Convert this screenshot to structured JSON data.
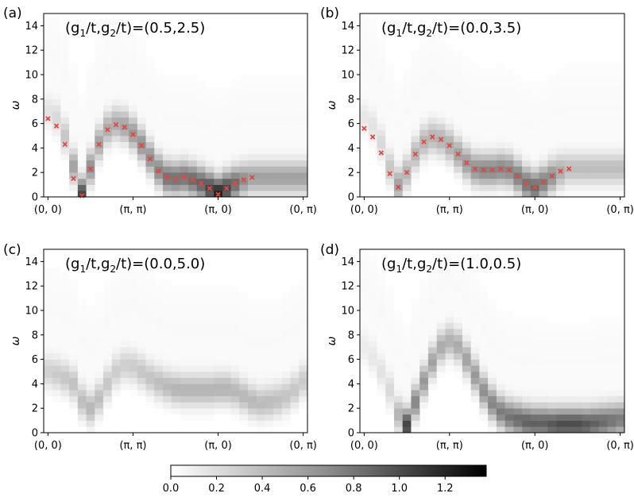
{
  "figure": {
    "colormap": "gray_r",
    "colorbar": {
      "min": 0.0,
      "max": 1.38,
      "ticks": [
        "0.0",
        "0.2",
        "0.4",
        "0.6",
        "0.8",
        "1.0",
        "1.2"
      ],
      "tick_values": [
        0.0,
        0.2,
        0.4,
        0.6,
        0.8,
        1.0,
        1.2
      ]
    },
    "marker_color": "#e8453c"
  },
  "chart_data": [
    {
      "type": "heatmap",
      "panel_label": "(a)",
      "title": "(g1/t,g2/t)=(0.5,2.5)",
      "title_parts": [
        "(g",
        "1",
        "/t,g",
        "2",
        "/t)=(0.5,2.5)"
      ],
      "ylabel": "ω",
      "ylim": [
        0,
        15
      ],
      "yticks": [
        "0",
        "2",
        "4",
        "6",
        "8",
        "10",
        "12",
        "14"
      ],
      "ytick_values": [
        0,
        2,
        4,
        6,
        8,
        10,
        12,
        14
      ],
      "xticks": [
        "(0, 0)",
        "(π, π)",
        "(π, 0)",
        "(0, π)"
      ],
      "xtick_index": [
        0,
        10,
        20,
        30
      ],
      "n_columns": 31,
      "dispersion": [
        6.4,
        5.8,
        4.3,
        1.5,
        0.1,
        2.3,
        4.3,
        5.5,
        5.9,
        5.7,
        5.1,
        4.2,
        3.1,
        2.1,
        1.6,
        1.5,
        1.6,
        1.4,
        1.1,
        0.7,
        0.2,
        0.7,
        1.1,
        1.4,
        1.6
      ],
      "dispersion_columns": [
        0,
        1,
        2,
        3,
        4,
        5,
        6,
        7,
        8,
        9,
        10,
        11,
        12,
        13,
        14,
        15,
        16,
        17,
        18,
        19,
        20,
        21,
        22,
        23,
        24
      ],
      "band_center": [
        7.0,
        6.5,
        5.0,
        2.5,
        0.2,
        2.4,
        4.4,
        5.6,
        6.0,
        5.8,
        5.2,
        4.3,
        3.2,
        2.2,
        1.6,
        1.5,
        1.6,
        1.4,
        1.1,
        0.7,
        0.3,
        0.7,
        1.1,
        1.4,
        1.6,
        1.6,
        1.6,
        1.6,
        1.6,
        1.6,
        1.6
      ],
      "band_weight": [
        0.15,
        0.2,
        0.3,
        0.5,
        1.0,
        0.6,
        0.5,
        0.45,
        0.45,
        0.5,
        0.55,
        0.6,
        0.6,
        0.65,
        0.75,
        0.75,
        0.75,
        0.8,
        0.85,
        1.0,
        1.2,
        1.0,
        0.8,
        0.6,
        0.5,
        0.5,
        0.5,
        0.5,
        0.5,
        0.5,
        0.5
      ],
      "show_markers": true
    },
    {
      "type": "heatmap",
      "panel_label": "(b)",
      "title": "(g1/t,g2/t)=(0.0,3.5)",
      "title_parts": [
        "(g",
        "1",
        "/t,g",
        "2",
        "/t)=(0.0,3.5)"
      ],
      "ylabel": "ω",
      "ylim": [
        0,
        15
      ],
      "yticks": [
        "0",
        "2",
        "4",
        "6",
        "8",
        "10",
        "12",
        "14"
      ],
      "ytick_values": [
        0,
        2,
        4,
        6,
        8,
        10,
        12,
        14
      ],
      "xticks": [
        "(0, 0)",
        "(π, π)",
        "(π, 0)",
        "(0, π)"
      ],
      "xtick_index": [
        0,
        10,
        20,
        30
      ],
      "n_columns": 31,
      "dispersion": [
        5.6,
        4.9,
        3.6,
        1.9,
        0.8,
        2.0,
        3.5,
        4.5,
        4.9,
        4.7,
        4.2,
        3.5,
        2.8,
        2.3,
        2.2,
        2.2,
        2.3,
        2.2,
        1.7,
        1.1,
        0.8,
        1.2,
        1.7,
        2.1,
        2.3
      ],
      "dispersion_columns": [
        0,
        1,
        2,
        3,
        4,
        5,
        6,
        7,
        8,
        9,
        10,
        11,
        12,
        13,
        14,
        15,
        16,
        17,
        18,
        19,
        20,
        21,
        22,
        23,
        24
      ],
      "band_center": [
        6.5,
        5.8,
        4.4,
        2.4,
        1.0,
        2.0,
        3.5,
        4.5,
        4.9,
        4.7,
        4.2,
        3.5,
        2.8,
        2.3,
        2.2,
        2.2,
        2.3,
        2.2,
        1.7,
        1.1,
        0.8,
        1.2,
        1.7,
        2.1,
        2.3,
        2.3,
        2.3,
        2.3,
        2.3,
        2.3,
        2.3
      ],
      "band_weight": [
        0.12,
        0.15,
        0.2,
        0.3,
        0.5,
        0.4,
        0.4,
        0.4,
        0.4,
        0.42,
        0.45,
        0.5,
        0.55,
        0.6,
        0.65,
        0.65,
        0.65,
        0.65,
        0.7,
        0.75,
        0.8,
        0.7,
        0.6,
        0.45,
        0.35,
        0.35,
        0.35,
        0.35,
        0.35,
        0.35,
        0.35
      ],
      "show_markers": true
    },
    {
      "type": "heatmap",
      "panel_label": "(c)",
      "title": "(g1/t,g2/t)=(0.0,5.0)",
      "title_parts": [
        "(g",
        "1",
        "/t,g",
        "2",
        "/t)=(0.0,5.0)"
      ],
      "ylabel": "ω",
      "ylim": [
        0,
        15
      ],
      "yticks": [
        "0",
        "2",
        "4",
        "6",
        "8",
        "10",
        "12",
        "14"
      ],
      "ytick_values": [
        0,
        2,
        4,
        6,
        8,
        10,
        12,
        14
      ],
      "xticks": [
        "(0, 0)",
        "(π, π)",
        "(π, 0)",
        "(0, π)"
      ],
      "xtick_index": [
        0,
        10,
        20,
        30
      ],
      "n_columns": 31,
      "band_center": [
        5.0,
        4.8,
        4.5,
        4.0,
        2.6,
        2.0,
        2.8,
        4.0,
        5.0,
        5.5,
        5.4,
        5.0,
        4.5,
        4.1,
        3.8,
        3.6,
        3.5,
        3.5,
        3.5,
        3.5,
        3.6,
        3.6,
        3.4,
        3.0,
        2.6,
        2.4,
        2.5,
        2.7,
        3.0,
        3.5,
        4.2
      ],
      "band_weight": [
        0.25,
        0.28,
        0.3,
        0.33,
        0.35,
        0.38,
        0.35,
        0.3,
        0.27,
        0.26,
        0.27,
        0.3,
        0.32,
        0.35,
        0.37,
        0.4,
        0.4,
        0.4,
        0.4,
        0.4,
        0.4,
        0.4,
        0.38,
        0.38,
        0.38,
        0.36,
        0.36,
        0.34,
        0.32,
        0.3,
        0.28
      ],
      "show_markers": false
    },
    {
      "type": "heatmap",
      "panel_label": "(d)",
      "title": "(g1/t,g2/t)=(1.0,0.5)",
      "title_parts": [
        "(g",
        "1",
        "/t,g",
        "2",
        "/t)=(1.0,0.5)"
      ],
      "ylabel": "ω",
      "ylim": [
        0,
        15
      ],
      "yticks": [
        "0",
        "2",
        "4",
        "6",
        "8",
        "10",
        "12",
        "14"
      ],
      "ytick_values": [
        0,
        2,
        4,
        6,
        8,
        10,
        12,
        14
      ],
      "xticks": [
        "(0, 0)",
        "(π, π)",
        "(π, 0)",
        "(0, π)"
      ],
      "xtick_index": [
        0,
        10,
        20,
        30
      ],
      "n_columns": 31,
      "band_center": [
        7.0,
        6.2,
        5.0,
        3.5,
        1.5,
        0.6,
        2.5,
        4.2,
        5.8,
        7.0,
        7.5,
        7.1,
        6.0,
        4.7,
        3.4,
        2.4,
        1.7,
        1.3,
        1.1,
        0.9,
        0.8,
        0.8,
        0.7,
        0.7,
        0.7,
        0.7,
        0.7,
        0.8,
        0.9,
        1.0,
        1.1
      ],
      "band_weight": [
        0.1,
        0.12,
        0.15,
        0.2,
        0.4,
        1.0,
        0.65,
        0.55,
        0.5,
        0.45,
        0.42,
        0.45,
        0.5,
        0.55,
        0.6,
        0.65,
        0.7,
        0.75,
        0.8,
        0.85,
        0.85,
        0.85,
        0.9,
        0.95,
        0.95,
        0.95,
        0.9,
        0.85,
        0.8,
        0.75,
        0.7
      ],
      "show_markers": false
    }
  ]
}
